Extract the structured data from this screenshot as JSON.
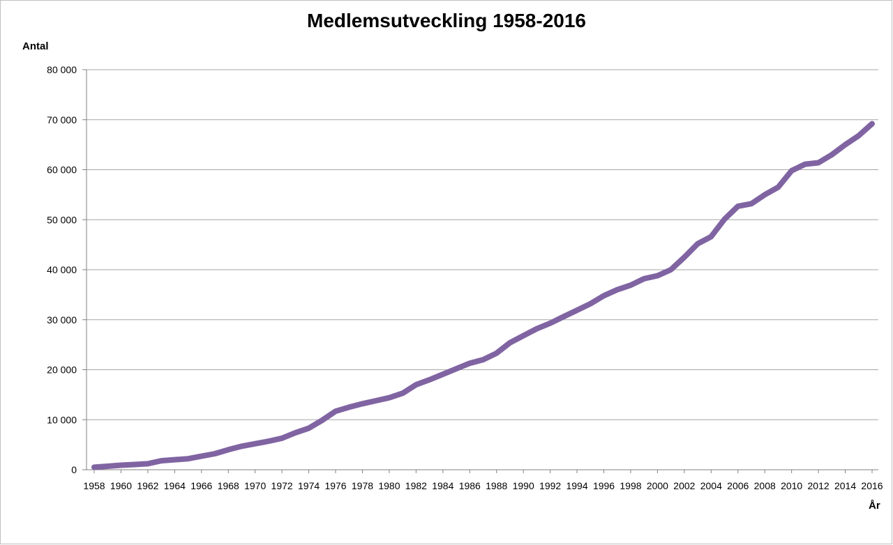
{
  "chart_data": {
    "type": "line",
    "title": "Medlemsutveckling 1958-2016",
    "ylabel": "Antal",
    "xlabel": "År",
    "ylim": [
      0,
      80000
    ],
    "yticks": [
      0,
      10000,
      20000,
      30000,
      40000,
      50000,
      60000,
      70000,
      80000
    ],
    "ytick_labels": [
      "0",
      "10 000",
      "20 000",
      "30 000",
      "40 000",
      "50 000",
      "60 000",
      "70 000",
      "80 000"
    ],
    "x_ticks": [
      "1958",
      "1960",
      "1962",
      "1964",
      "1966",
      "1968",
      "1970",
      "1972",
      "1974",
      "1976",
      "1978",
      "1980",
      "1982",
      "1984",
      "1986",
      "1988",
      "1990",
      "1992",
      "1994",
      "1996",
      "1998",
      "2000",
      "2002",
      "2004",
      "2006",
      "2008",
      "2010",
      "2012",
      "2014",
      "2016"
    ],
    "grid": "horizontal",
    "line_color": "#8064a2",
    "series": [
      {
        "x": [
          1958,
          1959,
          1960,
          1961,
          1962,
          1963,
          1964,
          1965,
          1966,
          1967,
          1968,
          1969,
          1970,
          1971,
          1972,
          1973,
          1974,
          1975,
          1976,
          1977,
          1978,
          1979,
          1980,
          1981,
          1982,
          1983,
          1984,
          1985,
          1986,
          1987,
          1988,
          1989,
          1990,
          1991,
          1992,
          1993,
          1994,
          1995,
          1996,
          1997,
          1998,
          1999,
          2000,
          2001,
          2002,
          2003,
          2004,
          2005,
          2006,
          2007,
          2008,
          2009,
          2010,
          2011,
          2012,
          2013,
          2014,
          2015,
          2016
        ],
        "values": [
          500,
          700,
          900,
          1050,
          1200,
          1800,
          2000,
          2200,
          2700,
          3200,
          4000,
          4700,
          5200,
          5700,
          6300,
          7400,
          8300,
          9900,
          11700,
          12500,
          13200,
          13800,
          14400,
          15300,
          17000,
          18000,
          19100,
          20200,
          21300,
          22000,
          23300,
          25400,
          26800,
          28200,
          29300,
          30600,
          31900,
          33200,
          34800,
          36000,
          36900,
          38200,
          38800,
          40000,
          42500,
          45200,
          46600,
          50100,
          52700,
          53200,
          55000,
          56500,
          59800,
          61100,
          61400,
          63000,
          65000,
          66800,
          69200
        ]
      }
    ]
  }
}
